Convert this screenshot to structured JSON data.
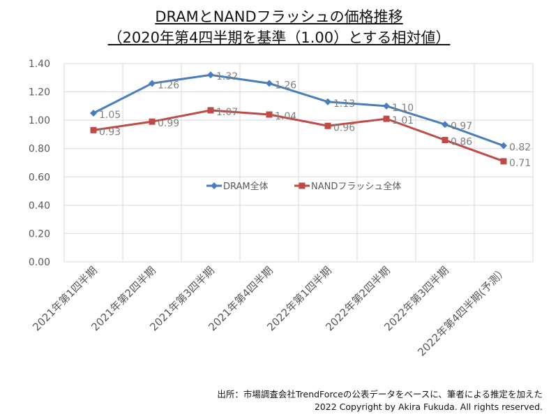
{
  "chart_data": {
    "type": "line",
    "title": "DRAMとNANDフラッシュの価格推移",
    "subtitle": "（2020年第4四半期を基準（1.00）とする相対値）",
    "categories": [
      "2021年第1四半期",
      "2021年第2四半期",
      "2021年第3四半期",
      "2021年第4四半期",
      "2022年第1四半期",
      "2022年第2四半期",
      "2022年第3四半期",
      "2022年第4四半期(予測）"
    ],
    "series": [
      {
        "name": "DRAM全体",
        "color": "#4a7ebb",
        "marker": "diamond",
        "values": [
          1.05,
          1.26,
          1.32,
          1.26,
          1.13,
          1.1,
          0.97,
          0.82
        ]
      },
      {
        "name": "NANDフラッシュ全体",
        "color": "#be4b48",
        "marker": "square",
        "values": [
          0.93,
          0.99,
          1.07,
          1.04,
          0.96,
          1.01,
          0.86,
          0.71
        ]
      }
    ],
    "ylim": [
      0,
      1.4
    ],
    "yticks": [
      "0.00",
      "0.20",
      "0.40",
      "0.60",
      "0.80",
      "1.00",
      "1.20",
      "1.40"
    ],
    "grid": true,
    "legend": "center",
    "xlabel": "",
    "ylabel": ""
  },
  "footer": {
    "source": "出所：市場調査会社TrendForceの公表データをベースに、筆者による推定を加えた",
    "copyright": "2022 Copyright by Akira Fukuda. All rights reserved."
  }
}
